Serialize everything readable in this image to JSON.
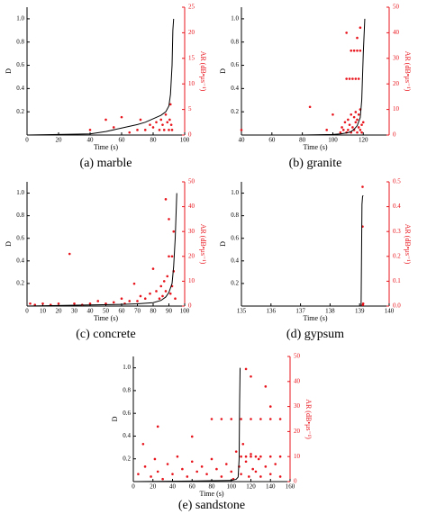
{
  "chart_data": [
    {
      "type": "combo",
      "caption": "(a) marble",
      "x_label": "Time (s)",
      "y_label": "D",
      "y2_label": "AR (dB•μs⁻¹)",
      "xlim": [
        0,
        100
      ],
      "xticks": [
        0,
        20,
        40,
        60,
        80,
        100
      ],
      "ylim": [
        0,
        1.1
      ],
      "yticks": [
        0.2,
        0.4,
        0.6,
        0.8,
        {
          "value": 1,
          "label": "1.0"
        }
      ],
      "y2lim": [
        0,
        25
      ],
      "y2ticks": [
        0,
        5,
        10,
        15,
        20,
        25
      ],
      "series": [
        {
          "type": "line",
          "color": "#000000",
          "x": [
            0,
            20,
            40,
            50,
            60,
            70,
            75,
            80,
            85,
            88,
            90,
            91,
            92,
            92.5,
            93
          ],
          "values": [
            0,
            0.005,
            0.01,
            0.03,
            0.06,
            0.09,
            0.11,
            0.14,
            0.17,
            0.2,
            0.25,
            0.35,
            0.6,
            0.9,
            1.0
          ]
        },
        {
          "type": "scatter",
          "axis": "y2",
          "color": "#e8141c",
          "x": [
            40,
            50,
            55,
            60,
            65,
            70,
            72,
            75,
            78,
            80,
            82,
            84,
            85,
            86,
            87,
            88,
            89,
            90,
            90.5,
            91,
            91.5,
            92
          ],
          "values": [
            1,
            3,
            1.5,
            3.5,
            0.5,
            1,
            3,
            1,
            2,
            1.5,
            2.5,
            1,
            3,
            2,
            1,
            4,
            2.5,
            1,
            3,
            6,
            2,
            1
          ]
        }
      ]
    },
    {
      "type": "combo",
      "caption": "(b) granite",
      "x_label": "Time (s)",
      "y_label": "D",
      "y2_label": "AR (dB•μs⁻¹)",
      "xlim": [
        40,
        137
      ],
      "xticks": [
        40,
        60,
        80,
        100,
        120
      ],
      "ylim": [
        0,
        1.1
      ],
      "yticks": [
        0.2,
        0.4,
        0.6,
        0.8,
        {
          "value": 1,
          "label": "1.0"
        }
      ],
      "y2lim": [
        0,
        50
      ],
      "y2ticks": [
        0,
        10,
        20,
        30,
        40,
        50
      ],
      "series": [
        {
          "type": "line",
          "color": "#000000",
          "x": [
            40,
            80,
            100,
            105,
            110,
            112,
            114,
            116,
            118,
            119,
            120,
            121
          ],
          "values": [
            0,
            0,
            0.005,
            0.01,
            0.02,
            0.03,
            0.05,
            0.08,
            0.15,
            0.3,
            0.7,
            1.0
          ]
        },
        {
          "type": "scatter",
          "axis": "y2",
          "color": "#e8141c",
          "x": [
            40,
            85,
            96,
            100,
            105,
            106,
            107,
            108,
            109,
            110,
            110,
            111,
            112,
            112,
            113,
            114,
            114,
            115,
            115,
            116,
            116,
            117,
            117,
            118,
            118,
            119,
            119,
            109,
            111,
            113,
            115,
            117,
            112,
            114,
            116,
            118,
            109,
            118,
            116,
            120
          ],
          "values": [
            2,
            11,
            2,
            8,
            1,
            3,
            2,
            5,
            1,
            6,
            2,
            4,
            8,
            1,
            3,
            7,
            2,
            5,
            9,
            1,
            6,
            3,
            8,
            2,
            10,
            4,
            1,
            22,
            22,
            22,
            22,
            22,
            33,
            33,
            33,
            33,
            40,
            42,
            38,
            5
          ]
        }
      ]
    },
    {
      "type": "combo",
      "caption": "(c) concrete",
      "x_label": "Time (s)",
      "y_label": "D",
      "y2_label": "AR (dB•μs⁻¹)",
      "xlim": [
        0,
        100
      ],
      "xticks": [
        0,
        10,
        20,
        30,
        40,
        50,
        60,
        70,
        80,
        90,
        100
      ],
      "ylim": [
        0,
        1.1
      ],
      "yticks": [
        0.2,
        0.4,
        0.6,
        0.8,
        {
          "value": 1,
          "label": "1.0"
        }
      ],
      "y2lim": [
        0,
        50
      ],
      "y2ticks": [
        0,
        10,
        20,
        30,
        40,
        50
      ],
      "series": [
        {
          "type": "line",
          "color": "#000000",
          "x": [
            0,
            20,
            40,
            60,
            70,
            80,
            85,
            88,
            90,
            92,
            93,
            94,
            95
          ],
          "values": [
            0,
            0.005,
            0.01,
            0.015,
            0.02,
            0.03,
            0.05,
            0.08,
            0.12,
            0.2,
            0.35,
            0.6,
            1.0
          ]
        },
        {
          "type": "scatter",
          "axis": "y2",
          "color": "#e8141c",
          "x": [
            2,
            5,
            10,
            15,
            20,
            27,
            30,
            35,
            40,
            45,
            50,
            55,
            60,
            62,
            65,
            68,
            70,
            72,
            75,
            78,
            80,
            82,
            84,
            85,
            86,
            87,
            88,
            88,
            89,
            90,
            90,
            91,
            92,
            92,
            93,
            93,
            94
          ],
          "values": [
            1,
            0.5,
            1,
            0.5,
            1,
            21,
            1,
            0.5,
            1,
            2,
            1,
            1.5,
            3,
            1,
            2,
            9,
            2,
            4,
            3,
            5,
            15,
            6,
            3,
            8,
            4,
            10,
            43,
            6,
            12,
            20,
            35,
            5,
            20,
            8,
            30,
            14,
            3
          ]
        }
      ]
    },
    {
      "type": "combo",
      "caption": "(d) gypsum",
      "x_label": "Time (s)",
      "y_label": "D",
      "y2_label": "AR (dB•μs⁻¹)",
      "xlim": [
        135,
        140
      ],
      "xticks": [
        135,
        136,
        137,
        138,
        139,
        140
      ],
      "ylim": [
        0,
        1.1
      ],
      "yticks": [
        0.2,
        0.4,
        0.6,
        0.8,
        {
          "value": 1,
          "label": "1.0"
        }
      ],
      "y2lim": [
        0,
        0.5
      ],
      "y2ticks": [
        {
          "value": 0,
          "label": "0.0"
        },
        0.1,
        0.2,
        0.3,
        0.4,
        0.5
      ],
      "series": [
        {
          "type": "line",
          "color": "#000000",
          "x": [
            135,
            139.05,
            139.08,
            139.1,
            139.12
          ],
          "values": [
            0,
            0,
            0.9,
            0.97,
            0.98
          ]
        },
        {
          "type": "scatter",
          "axis": "y2",
          "color": "#e8141c",
          "x": [
            139.1,
            139.1,
            139.12,
            139.11
          ],
          "values": [
            0.48,
            0.32,
            0.01,
            0.005
          ]
        }
      ]
    },
    {
      "type": "combo",
      "caption": "(e) sandstone",
      "x_label": "Time (s)",
      "y_label": "D",
      "y2_label": "AR (dB•μs⁻¹)",
      "xlim": [
        0,
        160
      ],
      "xticks": [
        0,
        20,
        40,
        60,
        80,
        100,
        120,
        140,
        160
      ],
      "ylim": [
        0,
        1.1
      ],
      "yticks": [
        0.2,
        0.4,
        0.6,
        0.8,
        {
          "value": 1,
          "label": "1.0"
        }
      ],
      "y2lim": [
        0,
        50
      ],
      "y2ticks": [
        0,
        10,
        20,
        30,
        40,
        50
      ],
      "series": [
        {
          "type": "line",
          "color": "#000000",
          "x": [
            0,
            60,
            100,
            105,
            107,
            108,
            108.5,
            109
          ],
          "values": [
            0,
            0.005,
            0.01,
            0.02,
            0.04,
            0.2,
            0.7,
            1.0
          ]
        },
        {
          "type": "scatter",
          "axis": "y2",
          "color": "#e8141c",
          "x": [
            5,
            10,
            12,
            18,
            22,
            25,
            30,
            35,
            40,
            45,
            50,
            55,
            60,
            65,
            70,
            75,
            80,
            85,
            90,
            95,
            100,
            102,
            105,
            108,
            110,
            112,
            115,
            118,
            120,
            122,
            125,
            128,
            130,
            135,
            140,
            145,
            150,
            110,
            115,
            120,
            125,
            130,
            140,
            150,
            80,
            90,
            100,
            110,
            120,
            130,
            140,
            150,
            115,
            120,
            135,
            25,
            60,
            140
          ],
          "values": [
            3,
            15,
            6,
            2,
            9,
            4,
            1,
            7,
            3,
            10,
            5,
            2,
            8,
            4,
            6,
            3,
            9,
            5,
            2,
            7,
            4,
            1,
            12,
            6,
            3,
            15,
            8,
            2,
            11,
            5,
            4,
            9,
            2,
            6,
            3,
            7,
            2,
            10,
            10,
            10,
            10,
            10,
            10,
            10,
            25,
            25,
            25,
            25,
            25,
            25,
            25,
            25,
            45,
            42,
            38,
            22,
            18,
            30
          ]
        }
      ]
    }
  ]
}
